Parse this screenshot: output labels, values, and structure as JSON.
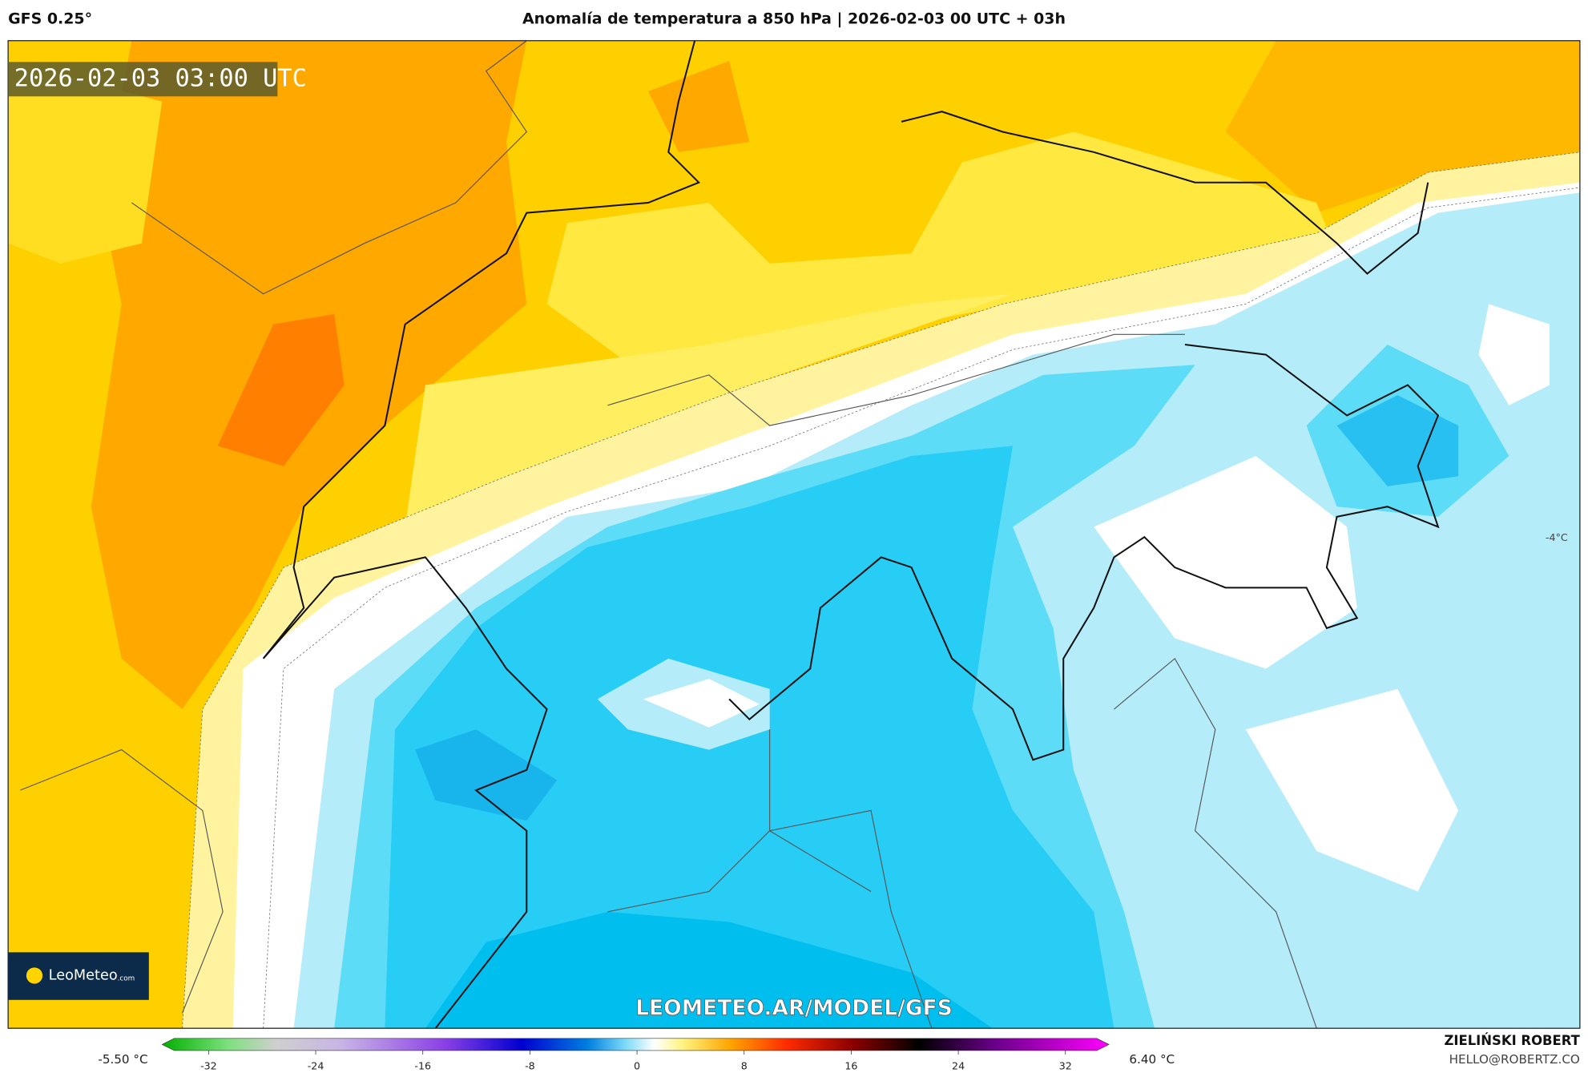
{
  "header": {
    "model": "GFS 0.25°",
    "title": "Anomalía de temperatura a 850 hPa | 2026-02-03 00 UTC + 03h"
  },
  "map": {
    "timestamp": "2026-02-03 03:00 UTC",
    "watermark": "LEOMETEO.AR/MODEL/GFS",
    "contour_label": "-4°C",
    "logo": {
      "name": "LeoMeteo",
      "suffix": ".com"
    }
  },
  "colorbar": {
    "min_label": "-5.50 °C",
    "max_label": "6.40 °C",
    "range": [
      -32,
      32
    ],
    "ticks": [
      -32,
      -24,
      -16,
      -8,
      0,
      8,
      16,
      24,
      32
    ]
  },
  "credits": {
    "author": "ZIELIŃSKI ROBERT",
    "email": "HELLO@ROBERTZ.CO"
  }
}
